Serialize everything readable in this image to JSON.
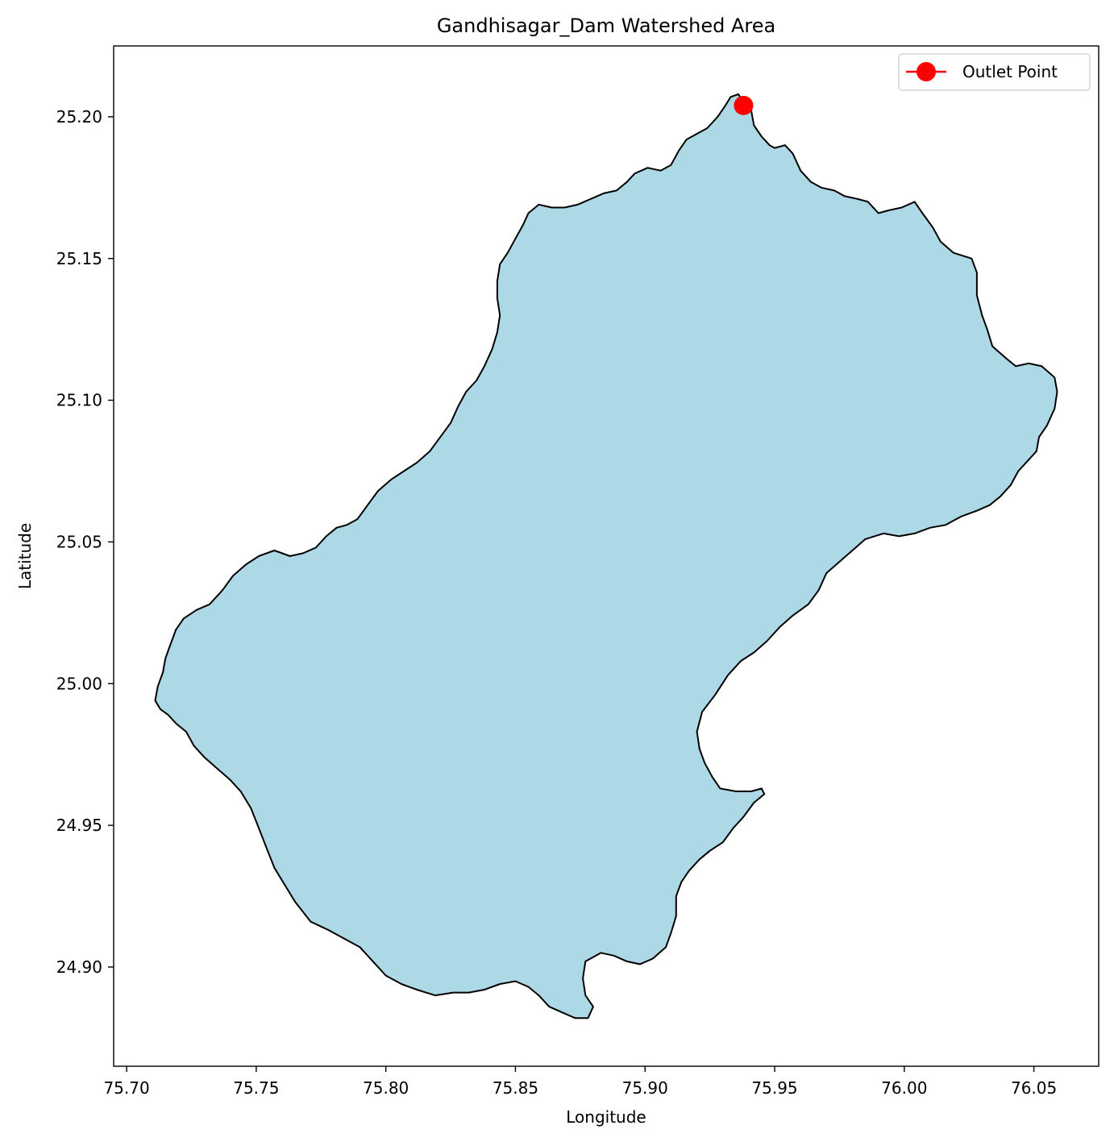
{
  "chart_data": {
    "type": "map",
    "title": "Gandhisagar_Dam Watershed Area",
    "xlabel": "Longitude",
    "ylabel": "Latitude",
    "xlim": [
      75.695,
      76.075
    ],
    "ylim": [
      24.865,
      25.225
    ],
    "x_ticks": [
      "75.70",
      "75.75",
      "75.80",
      "75.85",
      "75.90",
      "75.95",
      "76.00",
      "76.05"
    ],
    "x_tick_values": [
      75.7,
      75.75,
      75.8,
      75.85,
      75.9,
      75.95,
      76.0,
      76.05
    ],
    "y_ticks": [
      "24.90",
      "24.95",
      "25.00",
      "25.05",
      "25.10",
      "25.15",
      "25.20"
    ],
    "y_tick_values": [
      24.9,
      24.95,
      25.0,
      25.05,
      25.1,
      25.15,
      25.2
    ],
    "grid": false,
    "legend_position": "top-right",
    "legend": [
      {
        "label": "Outlet Point",
        "color": "#ff0000",
        "marker": "circle"
      }
    ],
    "outlet_point": {
      "lon": 75.938,
      "lat": 25.204
    },
    "watershed": {
      "fill": "#add8e6",
      "edge": "#000000",
      "boundary": [
        [
          75.936,
          25.208
        ],
        [
          75.938,
          25.205
        ],
        [
          75.941,
          25.202
        ],
        [
          75.942,
          25.197
        ],
        [
          75.945,
          25.193
        ],
        [
          75.948,
          25.19
        ],
        [
          75.95,
          25.189
        ],
        [
          75.954,
          25.19
        ],
        [
          75.957,
          25.187
        ],
        [
          75.96,
          25.181
        ],
        [
          75.964,
          25.177
        ],
        [
          75.968,
          25.175
        ],
        [
          75.973,
          25.174
        ],
        [
          75.977,
          25.172
        ],
        [
          75.982,
          25.171
        ],
        [
          75.986,
          25.17
        ],
        [
          75.99,
          25.166
        ],
        [
          75.994,
          25.167
        ],
        [
          75.999,
          25.168
        ],
        [
          76.004,
          25.17
        ],
        [
          76.007,
          25.166
        ],
        [
          76.011,
          25.161
        ],
        [
          76.014,
          25.156
        ],
        [
          76.019,
          25.152
        ],
        [
          76.026,
          25.15
        ],
        [
          76.028,
          25.145
        ],
        [
          76.028,
          25.137
        ],
        [
          76.03,
          25.13
        ],
        [
          76.032,
          25.125
        ],
        [
          76.034,
          25.119
        ],
        [
          76.039,
          25.115
        ],
        [
          76.043,
          25.112
        ],
        [
          76.048,
          25.113
        ],
        [
          76.053,
          25.112
        ],
        [
          76.058,
          25.108
        ],
        [
          76.059,
          25.103
        ],
        [
          76.058,
          25.097
        ],
        [
          76.055,
          25.091
        ],
        [
          76.052,
          25.087
        ],
        [
          76.051,
          25.082
        ],
        [
          76.048,
          25.079
        ],
        [
          76.044,
          25.075
        ],
        [
          76.041,
          25.07
        ],
        [
          76.037,
          25.066
        ],
        [
          76.033,
          25.063
        ],
        [
          76.028,
          25.061
        ],
        [
          76.022,
          25.059
        ],
        [
          76.016,
          25.056
        ],
        [
          76.01,
          25.055
        ],
        [
          76.004,
          25.053
        ],
        [
          75.998,
          25.052
        ],
        [
          75.992,
          25.053
        ],
        [
          75.985,
          25.051
        ],
        [
          75.98,
          25.047
        ],
        [
          75.975,
          25.043
        ],
        [
          75.97,
          25.039
        ],
        [
          75.967,
          25.033
        ],
        [
          75.963,
          25.028
        ],
        [
          75.957,
          25.024
        ],
        [
          75.952,
          25.02
        ],
        [
          75.947,
          25.015
        ],
        [
          75.942,
          25.011
        ],
        [
          75.937,
          25.008
        ],
        [
          75.932,
          25.003
        ],
        [
          75.927,
          24.996
        ],
        [
          75.922,
          24.99
        ],
        [
          75.92,
          24.983
        ],
        [
          75.921,
          24.977
        ],
        [
          75.923,
          24.972
        ],
        [
          75.926,
          24.967
        ],
        [
          75.929,
          24.963
        ],
        [
          75.935,
          24.962
        ],
        [
          75.941,
          24.962
        ],
        [
          75.945,
          24.963
        ],
        [
          75.946,
          24.961
        ],
        [
          75.942,
          24.958
        ],
        [
          75.938,
          24.953
        ],
        [
          75.934,
          24.949
        ],
        [
          75.93,
          24.944
        ],
        [
          75.925,
          24.941
        ],
        [
          75.921,
          24.938
        ],
        [
          75.917,
          24.934
        ],
        [
          75.914,
          24.93
        ],
        [
          75.912,
          24.925
        ],
        [
          75.912,
          24.918
        ],
        [
          75.91,
          24.912
        ],
        [
          75.908,
          24.907
        ],
        [
          75.903,
          24.903
        ],
        [
          75.898,
          24.901
        ],
        [
          75.893,
          24.902
        ],
        [
          75.888,
          24.904
        ],
        [
          75.883,
          24.905
        ],
        [
          75.877,
          24.902
        ],
        [
          75.876,
          24.896
        ],
        [
          75.877,
          24.89
        ],
        [
          75.88,
          24.886
        ],
        [
          75.878,
          24.882
        ],
        [
          75.873,
          24.882
        ],
        [
          75.868,
          24.884
        ],
        [
          75.863,
          24.886
        ],
        [
          75.859,
          24.89
        ],
        [
          75.855,
          24.893
        ],
        [
          75.85,
          24.895
        ],
        [
          75.844,
          24.894
        ],
        [
          75.838,
          24.892
        ],
        [
          75.832,
          24.891
        ],
        [
          75.826,
          24.891
        ],
        [
          75.819,
          24.89
        ],
        [
          75.812,
          24.892
        ],
        [
          75.806,
          24.894
        ],
        [
          75.8,
          24.897
        ],
        [
          75.795,
          24.902
        ],
        [
          75.79,
          24.907
        ],
        [
          75.784,
          24.91
        ],
        [
          75.778,
          24.913
        ],
        [
          75.771,
          24.916
        ],
        [
          75.765,
          24.923
        ],
        [
          75.761,
          24.929
        ],
        [
          75.757,
          24.935
        ],
        [
          75.754,
          24.942
        ],
        [
          75.751,
          24.949
        ],
        [
          75.748,
          24.956
        ],
        [
          75.744,
          24.962
        ],
        [
          75.74,
          24.966
        ],
        [
          75.735,
          24.97
        ],
        [
          75.73,
          24.974
        ],
        [
          75.726,
          24.978
        ],
        [
          75.723,
          24.983
        ],
        [
          75.719,
          24.986
        ],
        [
          75.716,
          24.989
        ],
        [
          75.713,
          24.991
        ],
        [
          75.711,
          24.994
        ],
        [
          75.712,
          24.999
        ],
        [
          75.714,
          25.004
        ],
        [
          75.715,
          25.009
        ],
        [
          75.717,
          25.014
        ],
        [
          75.719,
          25.019
        ],
        [
          75.722,
          25.023
        ],
        [
          75.727,
          25.026
        ],
        [
          75.732,
          25.028
        ],
        [
          75.737,
          25.033
        ],
        [
          75.741,
          25.038
        ],
        [
          75.746,
          25.042
        ],
        [
          75.751,
          25.045
        ],
        [
          75.757,
          25.047
        ],
        [
          75.763,
          25.045
        ],
        [
          75.768,
          25.046
        ],
        [
          75.773,
          25.048
        ],
        [
          75.777,
          25.052
        ],
        [
          75.781,
          25.055
        ],
        [
          75.785,
          25.056
        ],
        [
          75.789,
          25.058
        ],
        [
          75.793,
          25.063
        ],
        [
          75.797,
          25.068
        ],
        [
          75.802,
          25.072
        ],
        [
          75.807,
          25.075
        ],
        [
          75.812,
          25.078
        ],
        [
          75.817,
          25.082
        ],
        [
          75.821,
          25.087
        ],
        [
          75.825,
          25.092
        ],
        [
          75.828,
          25.098
        ],
        [
          75.831,
          25.103
        ],
        [
          75.835,
          25.107
        ],
        [
          75.838,
          25.112
        ],
        [
          75.841,
          25.118
        ],
        [
          75.843,
          25.124
        ],
        [
          75.844,
          25.13
        ],
        [
          75.843,
          25.136
        ],
        [
          75.843,
          25.142
        ],
        [
          75.844,
          25.148
        ],
        [
          75.847,
          25.152
        ],
        [
          75.85,
          25.157
        ],
        [
          75.853,
          25.162
        ],
        [
          75.855,
          25.166
        ],
        [
          75.859,
          25.169
        ],
        [
          75.864,
          25.168
        ],
        [
          75.869,
          25.168
        ],
        [
          75.874,
          25.169
        ],
        [
          75.879,
          25.171
        ],
        [
          75.884,
          25.173
        ],
        [
          75.889,
          25.174
        ],
        [
          75.893,
          25.177
        ],
        [
          75.896,
          25.18
        ],
        [
          75.901,
          25.182
        ],
        [
          75.906,
          25.181
        ],
        [
          75.91,
          25.183
        ],
        [
          75.913,
          25.188
        ],
        [
          75.916,
          25.192
        ],
        [
          75.92,
          25.194
        ],
        [
          75.924,
          25.196
        ],
        [
          75.928,
          25.2
        ],
        [
          75.931,
          25.204
        ],
        [
          75.933,
          25.207
        ]
      ]
    }
  }
}
